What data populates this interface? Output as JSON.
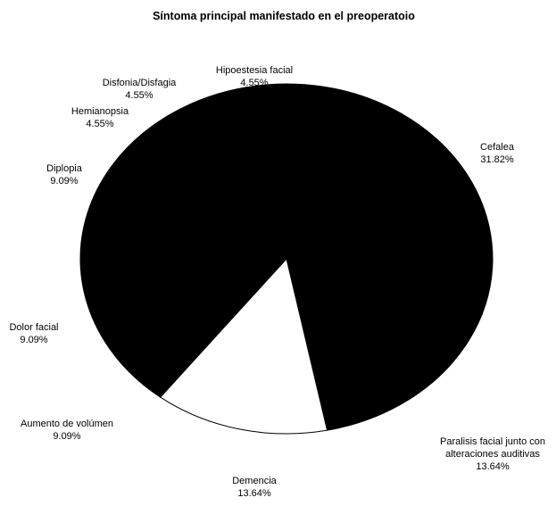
{
  "chart_data": {
    "type": "pie",
    "title": "Síntoma principal manifestado en el preoperatoio",
    "slices": [
      {
        "name": "Cefalea",
        "value": 31.82,
        "label": "31.82%"
      },
      {
        "name": "Paralisis facial junto con alteraciones auditivas",
        "value": 13.64,
        "label": "13.64%"
      },
      {
        "name": "Demencia",
        "value": 13.64,
        "label": "13.64%"
      },
      {
        "name": "Aumento de volúmen",
        "value": 9.09,
        "label": "9.09%"
      },
      {
        "name": "Dolor facial",
        "value": 9.09,
        "label": "9.09%"
      },
      {
        "name": "Diplopia",
        "value": 9.09,
        "label": "9.09%"
      },
      {
        "name": "Hemianopsia",
        "value": 4.55,
        "label": "4.55%"
      },
      {
        "name": "Disfonia/Disfagia",
        "value": 4.55,
        "label": "4.55%"
      },
      {
        "name": "Hipoestesia facial",
        "value": 4.55,
        "label": "4.55%"
      }
    ],
    "colors": {
      "fill": "#000000",
      "highlight": "#ffffff"
    },
    "highlighted_slice": "Demencia",
    "legend": "none",
    "label_lines": {
      "Paralisis facial junto con alteraciones auditivas": [
        "Paralisis facial junto con",
        "alteraciones auditivas"
      ]
    }
  }
}
